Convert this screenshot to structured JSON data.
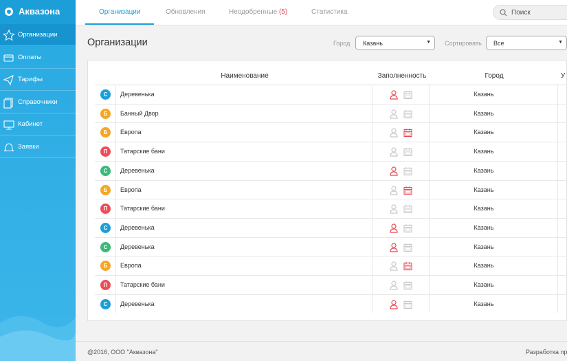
{
  "sidebar": {
    "logo": "Аквазона",
    "menu": [
      {
        "label": "Организации",
        "active": true
      },
      {
        "label": "Оплаты",
        "active": false
      },
      {
        "label": "Тарифы",
        "active": false
      },
      {
        "label": "Справочники",
        "active": false
      },
      {
        "label": "Кабинет",
        "active": false
      },
      {
        "label": "Заявки",
        "active": false
      }
    ]
  },
  "topbar": {
    "tabs": [
      {
        "label": "Организации",
        "active": true
      },
      {
        "label": "Обновления",
        "active": false
      },
      {
        "label": "Неодобренные",
        "count": "(5)",
        "active": false
      },
      {
        "label": "Статистика",
        "active": false
      }
    ],
    "search": "Поиск"
  },
  "header": {
    "title": "Организации",
    "city_label": "Город",
    "city_value": "Казань",
    "sort_label": "Сортировать",
    "sort_value": "Все"
  },
  "table": {
    "columns": [
      "Наименование",
      "Заполненность",
      "Город",
      "У"
    ],
    "rows": [
      {
        "badge": "С",
        "badge_color": "#1c9fd9",
        "name": "Деревенька",
        "user": true,
        "calendar": false,
        "city": "Казань"
      },
      {
        "badge": "Б",
        "badge_color": "#f5a623",
        "name": "Банный Двор",
        "user": false,
        "calendar": false,
        "city": "Казань"
      },
      {
        "badge": "Б",
        "badge_color": "#f5a623",
        "name": "Европа",
        "user": false,
        "calendar": true,
        "city": "Казань"
      },
      {
        "badge": "П",
        "badge_color": "#ee4d58",
        "name": "Татарские бани",
        "user": false,
        "calendar": false,
        "city": "Казань"
      },
      {
        "badge": "С",
        "badge_color": "#3cb878",
        "name": "Деревенька",
        "user": true,
        "calendar": false,
        "city": "Казань"
      },
      {
        "badge": "Б",
        "badge_color": "#f5a623",
        "name": "Европа",
        "user": false,
        "calendar": true,
        "city": "Казань"
      },
      {
        "badge": "П",
        "badge_color": "#ee4d58",
        "name": "Татарские бани",
        "user": false,
        "calendar": false,
        "city": "Казань"
      },
      {
        "badge": "С",
        "badge_color": "#1c9fd9",
        "name": "Деревенька",
        "user": true,
        "calendar": false,
        "city": "Казань"
      },
      {
        "badge": "С",
        "badge_color": "#3cb878",
        "name": "Деревенька",
        "user": true,
        "calendar": false,
        "city": "Казань"
      },
      {
        "badge": "Б",
        "badge_color": "#f5a623",
        "name": "Европа",
        "user": false,
        "calendar": true,
        "city": "Казань"
      },
      {
        "badge": "П",
        "badge_color": "#ee4d58",
        "name": "Татарские бани",
        "user": false,
        "calendar": false,
        "city": "Казань"
      },
      {
        "badge": "С",
        "badge_color": "#1c9fd9",
        "name": "Деревенька",
        "user": true,
        "calendar": false,
        "city": "Казань"
      }
    ]
  },
  "footer": {
    "copyright": "@2016, ООО \"Аквазона\"",
    "developer": "Разработка пр"
  }
}
